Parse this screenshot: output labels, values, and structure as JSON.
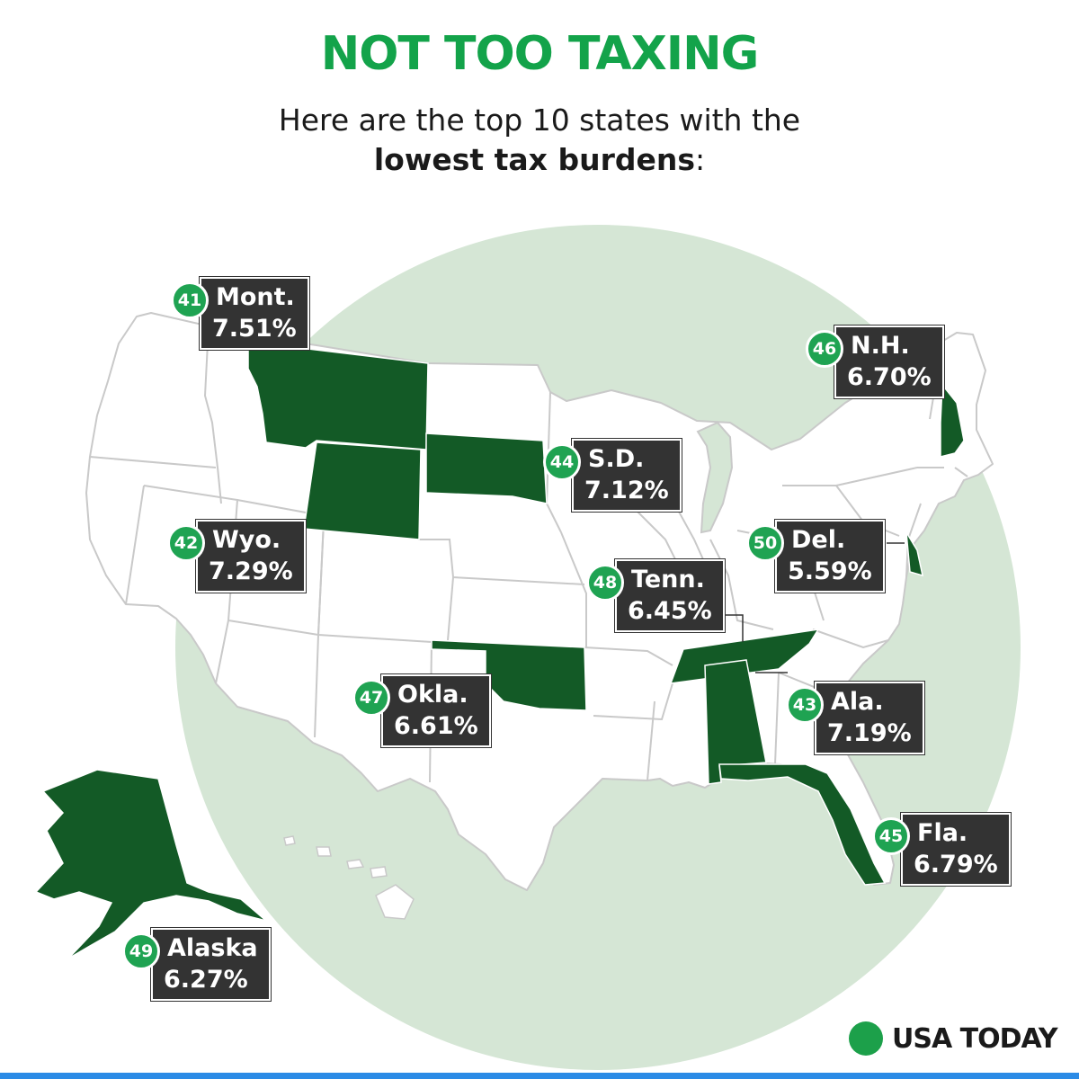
{
  "title": "NOT TOO TAXING",
  "subtitle_line1": "Here are the top 10 states with the",
  "subtitle_bold": "lowest tax burdens",
  "subtitle_end": ":",
  "brand": "USA TODAY",
  "colors": {
    "title": "#13a34a",
    "highlight_state": "#135a26",
    "circle_bg": "#d5e6d5",
    "state_fill": "#ffffff",
    "state_stroke": "#c9c9c9",
    "label_box": "#333333",
    "rank_badge": "#1fa352",
    "brand_dot": "#1ca04a",
    "bottom_bar": "#2b8be6"
  },
  "states": [
    {
      "rank": "41",
      "state": "Mont.",
      "burden": "7.51%"
    },
    {
      "rank": "42",
      "state": "Wyo.",
      "burden": "7.29%"
    },
    {
      "rank": "43",
      "state": "Ala.",
      "burden": "7.19%"
    },
    {
      "rank": "44",
      "state": "S.D.",
      "burden": "7.12%"
    },
    {
      "rank": "45",
      "state": "Fla.",
      "burden": "6.79%"
    },
    {
      "rank": "46",
      "state": "N.H.",
      "burden": "6.70%"
    },
    {
      "rank": "47",
      "state": "Okla.",
      "burden": "6.61%"
    },
    {
      "rank": "48",
      "state": "Tenn.",
      "burden": "6.45%"
    },
    {
      "rank": "49",
      "state": "Alaska",
      "burden": "6.27%"
    },
    {
      "rank": "50",
      "state": "Del.",
      "burden": "5.59%"
    }
  ]
}
